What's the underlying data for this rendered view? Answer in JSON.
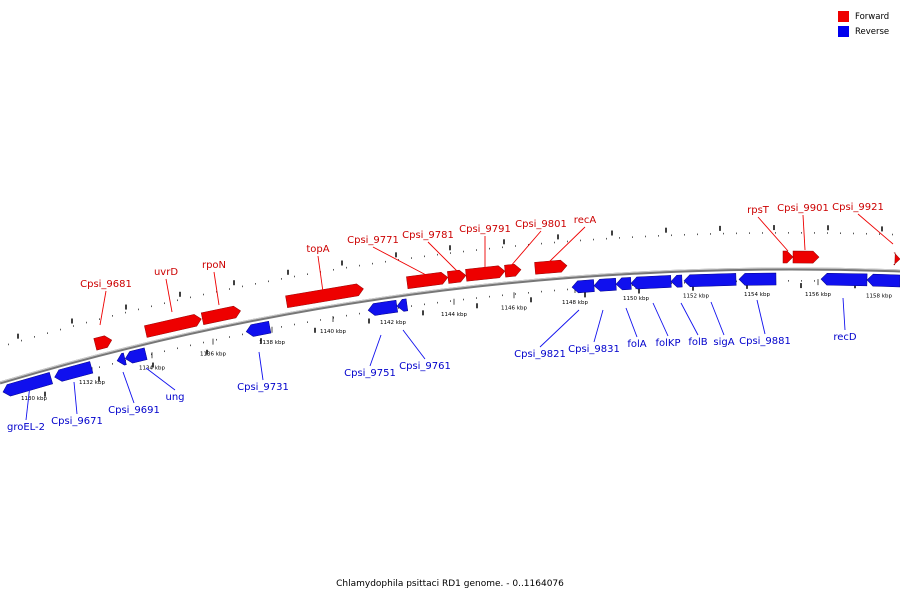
{
  "caption": "Chlamydophila psittaci RD1 genome. - 0..1164076",
  "legend": [
    {
      "label": "Forward",
      "color": "#ee0000"
    },
    {
      "label": "Reverse",
      "color": "#0000ee"
    }
  ],
  "colors": {
    "forward": "#ee0000",
    "reverse": "#1010ee",
    "forward_text": "#cc0000",
    "reverse_text": "#0000cc",
    "backbone": "#777777"
  },
  "ticks": [
    "1130 kbp",
    "1132 kbp",
    "1134 kbp",
    "1136 kbp",
    "1138 kbp",
    "1140 kbp",
    "1142 kbp",
    "1144 kbp",
    "1146 kbp",
    "1148 kbp",
    "1150 kbp",
    "1152 kbp",
    "1154 kbp",
    "1156 kbp",
    "1158 kbp"
  ],
  "forward_genes": [
    "Cpsi_9681",
    "uvrD",
    "rpoN",
    "topA",
    "Cpsi_9771",
    "Cpsi_9781",
    "Cpsi_9791",
    "Cpsi_9801",
    "recA",
    "rpsT",
    "Cpsi_9901",
    "Cpsi_9921"
  ],
  "reverse_genes": [
    "groEL-2",
    "Cpsi_9671",
    "Cpsi_9691",
    "ung",
    "Cpsi_9731",
    "Cpsi_9751",
    "Cpsi_9761",
    "Cpsi_9821",
    "Cpsi_9831",
    "folA",
    "folKP",
    "folB",
    "sigA",
    "Cpsi_9881",
    "recD"
  ]
}
